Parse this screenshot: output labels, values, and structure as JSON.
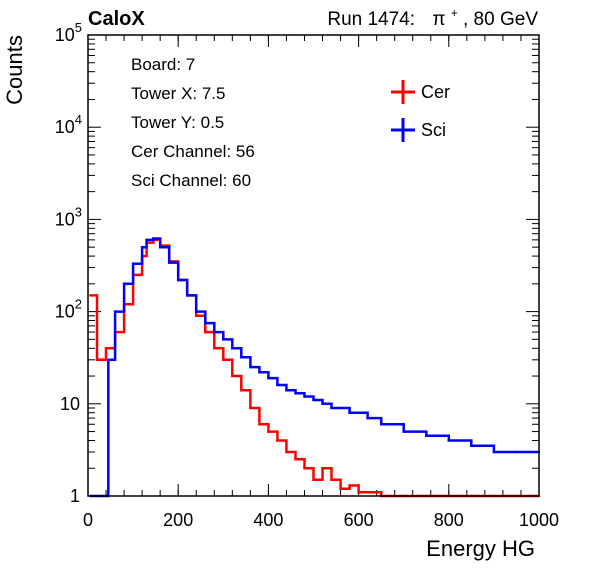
{
  "chart_data": {
    "type": "line",
    "header": {
      "experiment": "CaloX",
      "run_label": "Run 1474:",
      "beam_particle": "π",
      "beam_charge": "+",
      "beam_energy": ", 80 GeV"
    },
    "xlabel": "Energy HG",
    "ylabel": "Counts",
    "xlim": [
      0,
      1000
    ],
    "ylim": [
      1,
      100000
    ],
    "yscale": "log",
    "grid": false,
    "x_ticks": [
      "0",
      "200",
      "400",
      "600",
      "800",
      "1000"
    ],
    "y_ticks": [
      {
        "base": "1",
        "exp": ""
      },
      {
        "base": "10",
        "exp": ""
      },
      {
        "base": "10",
        "exp": "2"
      },
      {
        "base": "10",
        "exp": "3"
      },
      {
        "base": "10",
        "exp": "4"
      },
      {
        "base": "10",
        "exp": "5"
      }
    ],
    "info_box": [
      "Board: 7",
      "Tower X: 7.5",
      "Tower Y: 0.5",
      "Cer Channel: 56",
      "Sci Channel: 60"
    ],
    "legend_position": "top-right",
    "series": [
      {
        "name": "Cer",
        "color": "#ff0000",
        "x": [
          5,
          20,
          40,
          60,
          80,
          100,
          120,
          130,
          145,
          160,
          180,
          200,
          220,
          240,
          260,
          280,
          300,
          320,
          340,
          360,
          380,
          400,
          420,
          440,
          460,
          480,
          500,
          520,
          540,
          560,
          580,
          600,
          650,
          700,
          750,
          800,
          850,
          900,
          950,
          1000
        ],
        "y": [
          150,
          30,
          40,
          60,
          120,
          250,
          400,
          560,
          600,
          520,
          350,
          220,
          150,
          90,
          60,
          40,
          30,
          20,
          14,
          9,
          6,
          5,
          4,
          3,
          2.5,
          2,
          1.5,
          2,
          1.5,
          1.2,
          1.3,
          1.1,
          1,
          1,
          1,
          1,
          1,
          1,
          1,
          1
        ]
      },
      {
        "name": "Sci",
        "color": "#0000ff",
        "x": [
          5,
          20,
          40,
          45,
          60,
          80,
          100,
          120,
          130,
          145,
          160,
          180,
          200,
          220,
          240,
          260,
          280,
          300,
          320,
          340,
          360,
          380,
          400,
          420,
          440,
          460,
          480,
          500,
          520,
          540,
          560,
          580,
          600,
          620,
          650,
          700,
          750,
          800,
          850,
          900,
          950,
          1000
        ],
        "y": [
          1,
          1,
          1,
          30,
          100,
          200,
          330,
          500,
          600,
          620,
          500,
          340,
          220,
          150,
          100,
          75,
          60,
          50,
          40,
          32,
          25,
          22,
          19,
          16,
          14,
          13,
          12,
          11,
          10,
          9,
          9,
          8,
          8,
          7,
          6,
          5,
          4.5,
          4,
          3.5,
          3,
          3,
          3
        ]
      }
    ]
  }
}
